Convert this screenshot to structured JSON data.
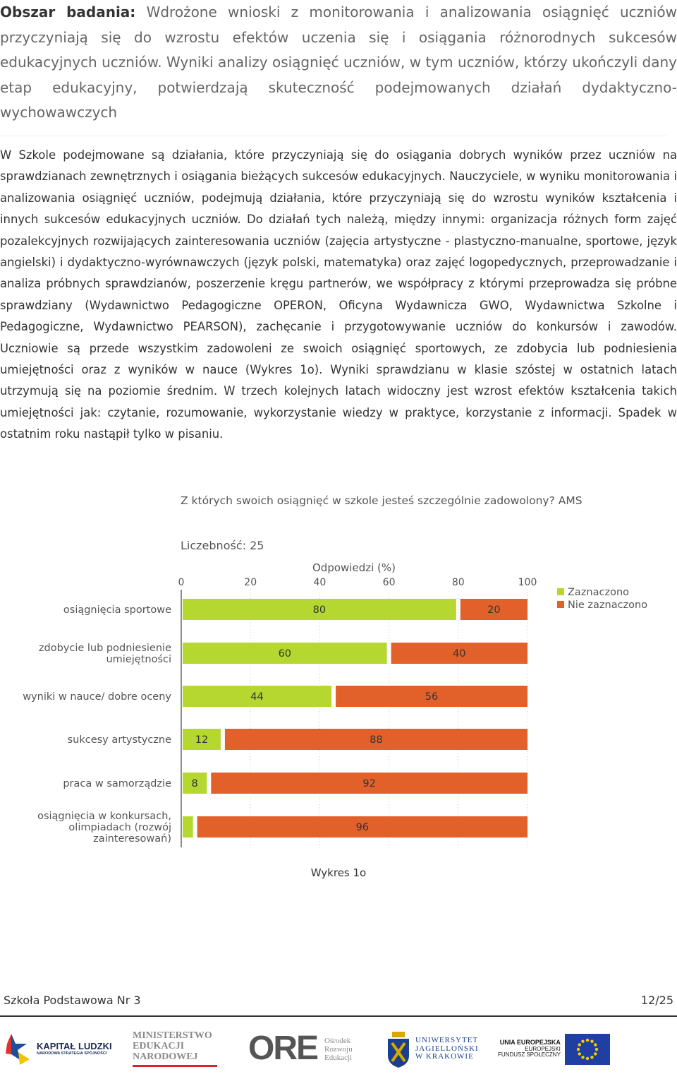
{
  "intro": {
    "lead": "Obszar badania:",
    "text": "Wdrożone wnioski z monitorowania i analizowania osiągnięć uczniów przyczyniają się do wzrostu efektów uczenia się i osiągania różnorodnych sukcesów edukacyjnych uczniów. Wyniki analizy osiągnięć uczniów, w tym uczniów, którzy ukończyli dany etap edukacyjny, potwierdzają skuteczność podejmowanych działań dydaktyczno-wychowawczych"
  },
  "body": {
    "text": "W Szkole podejmowane są działania, które przyczyniają się do osiągania dobrych wyników przez uczniów na sprawdzianach zewnętrznych i osiągania bieżących sukcesów edukacyjnych. Nauczyciele, w wyniku monitorowania i analizowania osiągnięć uczniów, podejmują działania, które przyczyniają się do wzrostu wyników kształcenia i innych sukcesów edukacyjnych uczniów. Do działań tych należą, między innymi: organizacja różnych form zajęć pozalekcyjnych rozwijających zainteresowania uczniów (zajęcia artystyczne - plastyczno-manualne, sportowe, język angielski) i dydaktyczno-wyrównawczych (język polski, matematyka) oraz zajęć logopedycznych, przeprowadzanie i analiza próbnych sprawdzianów, poszerzenie kręgu partnerów, we współpracy z którymi przeprowadza się próbne sprawdziany (Wydawnictwo Pedagogiczne OPERON, Oficyna Wydawnicza GWO, Wydawnictwa Szkolne i Pedagogiczne, Wydawnictwo PEARSON), zachęcanie i przygotowywanie uczniów do konkursów i zawodów. Uczniowie są przede wszystkim zadowoleni ze swoich osiągnięć sportowych, ze zdobycia lub podniesienia umiejętności oraz z wyników w nauce (Wykres 1o). Wyniki sprawdzianu w klasie szóstej w ostatnich latach utrzymują się na poziomie średnim. W trzech kolejnych latach widoczny jest wzrost efektów kształcenia takich umiejętności jak: czytanie, rozumowanie, wykorzystanie wiedzy w praktyce, korzystanie z informacji. Spadek w ostatnim roku nastąpił tylko w pisaniu."
  },
  "chart_data": {
    "type": "bar",
    "orientation": "horizontal-stacked",
    "title": "Z których swoich osiągnięć w szkole jesteś szczególnie zadowolony? AMS",
    "subtitle": "Liczebność: 25",
    "xlabel": "Odpowiedzi (%)",
    "xlim": [
      0,
      100
    ],
    "xticks": [
      "0",
      "20",
      "40",
      "60",
      "80",
      "100"
    ],
    "legend_position": "top-right",
    "categories": [
      [
        "osiągnięcia sportowe"
      ],
      [
        "zdobycie lub podniesienie",
        "umiejętności"
      ],
      [
        "wyniki w nauce/ dobre oceny"
      ],
      [
        "sukcesy artystyczne"
      ],
      [
        "praca w samorządzie"
      ],
      [
        "osiągnięcia w konkursach,",
        "olimpiadach (rozwój",
        "zainteresowań)"
      ]
    ],
    "series": [
      {
        "name": "Zaznaczono",
        "color": "#b5d730",
        "values": [
          80,
          60,
          44,
          12,
          8,
          4
        ],
        "labels": [
          "80",
          "60",
          "44",
          "12",
          "8",
          ""
        ]
      },
      {
        "name": "Nie zaznaczono",
        "color": "#e2612b",
        "values": [
          20,
          40,
          56,
          88,
          92,
          96
        ],
        "labels": [
          "20",
          "40",
          "56",
          "88",
          "92",
          "96"
        ]
      }
    ]
  },
  "caption": "Wykres 1o",
  "footer": {
    "school": "Szkoła Podstawowa Nr 3",
    "page": "12/25"
  },
  "logos": {
    "kapital": {
      "line1": "KAPITAŁ LUDZKI",
      "line2": "NARODOWA STRATEGIA SPÓJNOŚCI"
    },
    "men": {
      "line1": "MINISTERSTWO",
      "line2": "EDUKACJI",
      "line3": "NARODOWEJ"
    },
    "ore": {
      "mark": "ORE",
      "line1": "Ośrodek",
      "line2": "Rozwoju",
      "line3": "Edukacji"
    },
    "uj": {
      "line1": "UNIWERSYTET",
      "line2": "JAGIELLOŃSKI",
      "line3": "W KRAKOWIE"
    },
    "ue": {
      "line1": "UNIA EUROPEJSKA",
      "line2": "EUROPEJSKI",
      "line3": "FUNDUSZ SPOŁECZNY"
    }
  }
}
